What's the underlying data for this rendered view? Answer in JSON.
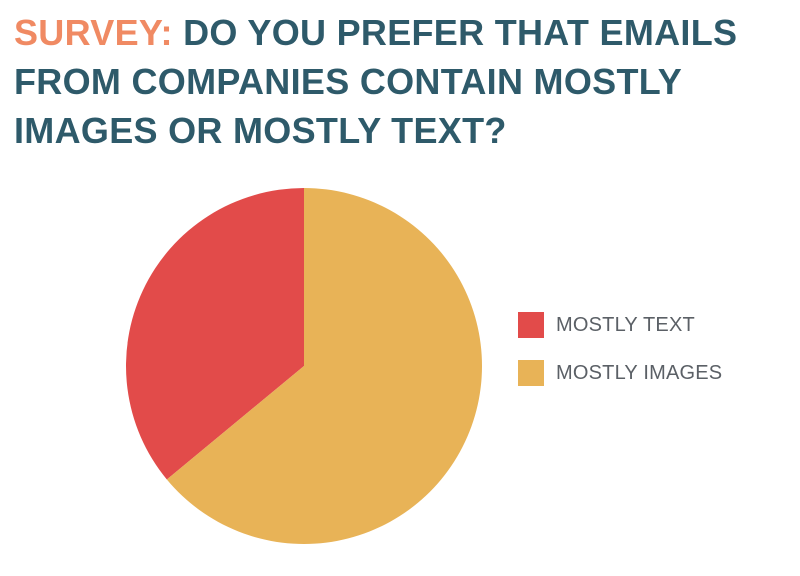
{
  "title": {
    "prefix": "SURVEY:",
    "text": "DO YOU PREFER THAT EMAILS FROM COMPANIES CONTAIN MOSTLY IMAGES OR MOSTLY TEXT?"
  },
  "colors": {
    "title_prefix": "#f08a63",
    "title_text": "#2e5a6a",
    "legend_text": "#5b6066"
  },
  "chart_data": {
    "type": "pie",
    "title": "SURVEY: DO YOU PREFER THAT EMAILS FROM COMPANIES CONTAIN MOSTLY IMAGES OR MOSTLY TEXT?",
    "legend_position": "right",
    "slices": [
      {
        "label": "MOSTLY TEXT",
        "value": 36,
        "color": "#e24b4a"
      },
      {
        "label": "MOSTLY IMAGES",
        "value": 64,
        "color": "#e8b357"
      }
    ]
  }
}
